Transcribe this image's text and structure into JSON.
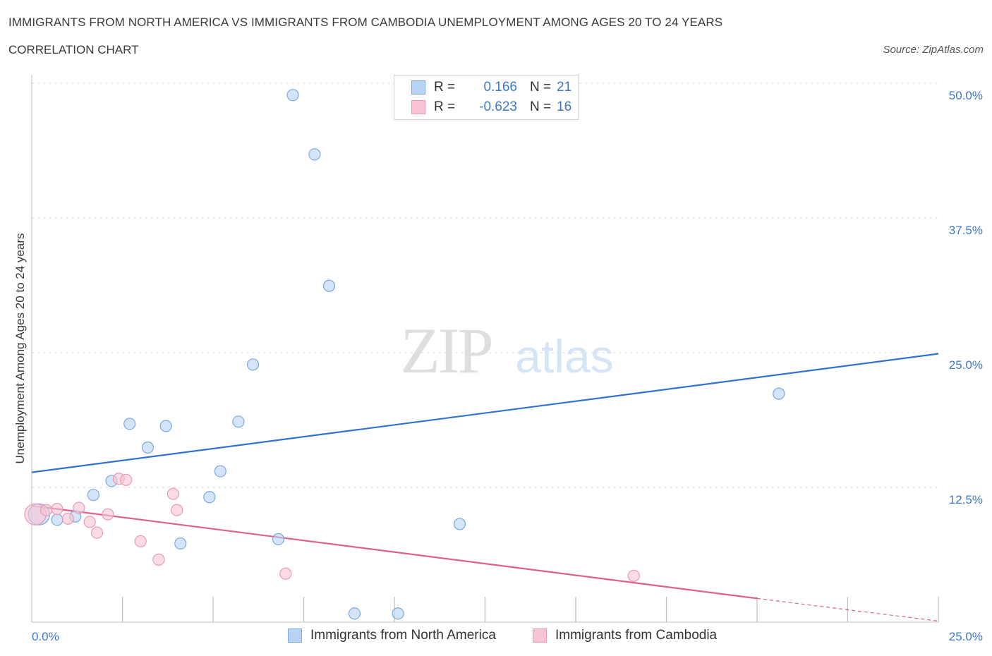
{
  "header": {
    "title": "IMMIGRANTS FROM NORTH AMERICA VS IMMIGRANTS FROM CAMBODIA UNEMPLOYMENT AMONG AGES 20 TO 24 YEARS",
    "subtitle": "CORRELATION CHART",
    "source": "Source: ZipAtlas.com"
  },
  "watermark": {
    "zip": "ZIP",
    "atlas": "atlas"
  },
  "legend": {
    "rows": [
      {
        "r_label": "R =",
        "r_value": "0.166",
        "n_label": "N =",
        "n_value": "21"
      },
      {
        "r_label": "R =",
        "r_value": "-0.623",
        "n_label": "N =",
        "n_value": "16"
      }
    ]
  },
  "colors": {
    "north_america_fill": "#b8d3f5",
    "north_america_stroke": "#7aa8e0",
    "north_america_line": "#2f72cf",
    "cambodia_fill": "#f8c4d3",
    "cambodia_stroke": "#ea9ab3",
    "cambodia_line": "#e0608c",
    "tick_text": "#3e78c9",
    "grid": "#dcdcdc"
  },
  "chart_data": {
    "type": "scatter",
    "title": "IMMIGRANTS FROM NORTH AMERICA VS IMMIGRANTS FROM CAMBODIA UNEMPLOYMENT AMONG AGES 20 TO 24 YEARS",
    "xlabel": "",
    "ylabel": "Unemployment Among Ages 20 to 24 years",
    "xlim": [
      0,
      25
    ],
    "ylim": [
      0,
      50
    ],
    "y_ticks": [
      {
        "value": 12.5,
        "label": "12.5%"
      },
      {
        "value": 25,
        "label": "25.0%"
      },
      {
        "value": 37.5,
        "label": "37.5%"
      },
      {
        "value": 50,
        "label": "50.0%"
      }
    ],
    "x_tick_labels": {
      "min": "0.0%",
      "max": "25.0%"
    },
    "x_minor_ticks": [
      2.5,
      5,
      7.5,
      10,
      12.5,
      15,
      17.5,
      20,
      22.5,
      25
    ],
    "grid": true,
    "legend_placement": "top-center and bottom",
    "series": [
      {
        "name": "Immigrants from North America",
        "points": [
          {
            "x": 0.2,
            "y": 10.0,
            "big": true
          },
          {
            "x": 0.7,
            "y": 9.5
          },
          {
            "x": 1.2,
            "y": 9.8
          },
          {
            "x": 1.7,
            "y": 11.8
          },
          {
            "x": 2.2,
            "y": 13.1
          },
          {
            "x": 2.7,
            "y": 18.4
          },
          {
            "x": 3.2,
            "y": 16.2
          },
          {
            "x": 3.7,
            "y": 18.2
          },
          {
            "x": 4.1,
            "y": 7.3
          },
          {
            "x": 4.9,
            "y": 11.6
          },
          {
            "x": 5.2,
            "y": 14.0
          },
          {
            "x": 5.7,
            "y": 18.6
          },
          {
            "x": 6.1,
            "y": 23.9
          },
          {
            "x": 6.8,
            "y": 7.7
          },
          {
            "x": 7.2,
            "y": 48.9
          },
          {
            "x": 7.8,
            "y": 43.4
          },
          {
            "x": 8.2,
            "y": 31.2
          },
          {
            "x": 8.9,
            "y": 0.8
          },
          {
            "x": 10.1,
            "y": 0.8
          },
          {
            "x": 11.8,
            "y": 9.1
          },
          {
            "x": 20.6,
            "y": 21.2
          }
        ],
        "trend": {
          "x0": 0,
          "y0": 13.9,
          "x1": 25,
          "y1": 24.9
        }
      },
      {
        "name": "Immigrants from Cambodia",
        "points": [
          {
            "x": 0.1,
            "y": 10.0,
            "big": true
          },
          {
            "x": 0.4,
            "y": 10.4
          },
          {
            "x": 0.7,
            "y": 10.5
          },
          {
            "x": 1.0,
            "y": 9.6
          },
          {
            "x": 1.3,
            "y": 10.6
          },
          {
            "x": 1.6,
            "y": 9.3
          },
          {
            "x": 1.8,
            "y": 8.3
          },
          {
            "x": 2.1,
            "y": 10.0
          },
          {
            "x": 2.4,
            "y": 13.3
          },
          {
            "x": 2.6,
            "y": 13.2
          },
          {
            "x": 3.0,
            "y": 7.5
          },
          {
            "x": 3.5,
            "y": 5.8
          },
          {
            "x": 3.9,
            "y": 11.9
          },
          {
            "x": 4.0,
            "y": 10.4
          },
          {
            "x": 7.0,
            "y": 4.5
          },
          {
            "x": 16.6,
            "y": 4.3
          }
        ],
        "trend": {
          "x0": 0,
          "y0": 10.8,
          "x1": 20,
          "y1": 2.2
        },
        "trend_dashed": {
          "x0": 20,
          "y0": 2.2,
          "x1": 25,
          "y1": 0.1
        }
      }
    ]
  }
}
